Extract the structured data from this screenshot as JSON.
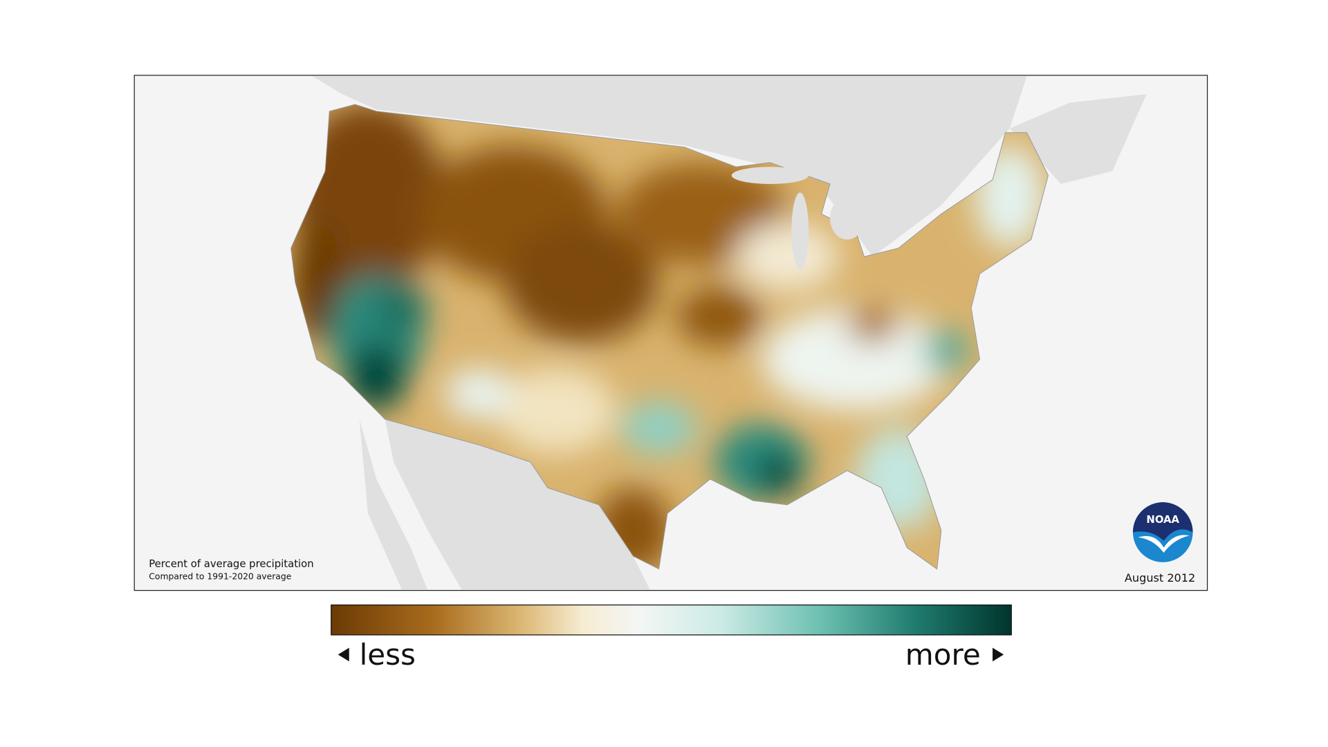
{
  "map": {
    "title": "Percent of average precipitation",
    "subtitle": "Compared to 1991-2020 average",
    "date": "August 2012"
  },
  "legend": {
    "low": "less",
    "high": "more"
  },
  "logo": {
    "text": "NOAA"
  }
}
